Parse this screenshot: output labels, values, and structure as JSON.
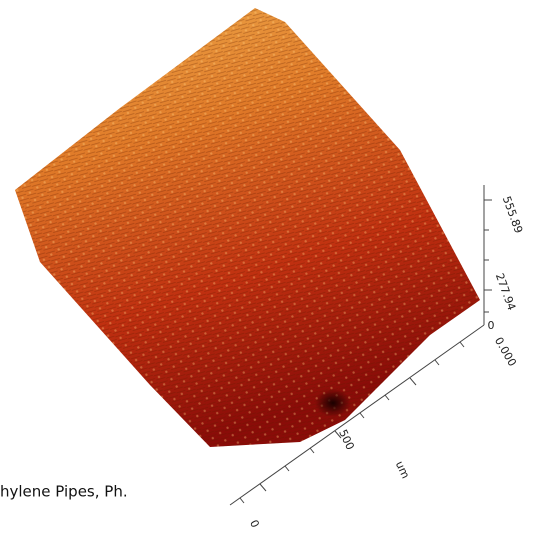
{
  "surface": {
    "z_axis": {
      "labels": [
        "555.89",
        "277.94",
        "0.000"
      ],
      "origin": "0"
    },
    "x_axis": {
      "tick": "500",
      "unit": "um",
      "origin": "0"
    }
  },
  "caption": "hylene Pipes, Ph."
}
